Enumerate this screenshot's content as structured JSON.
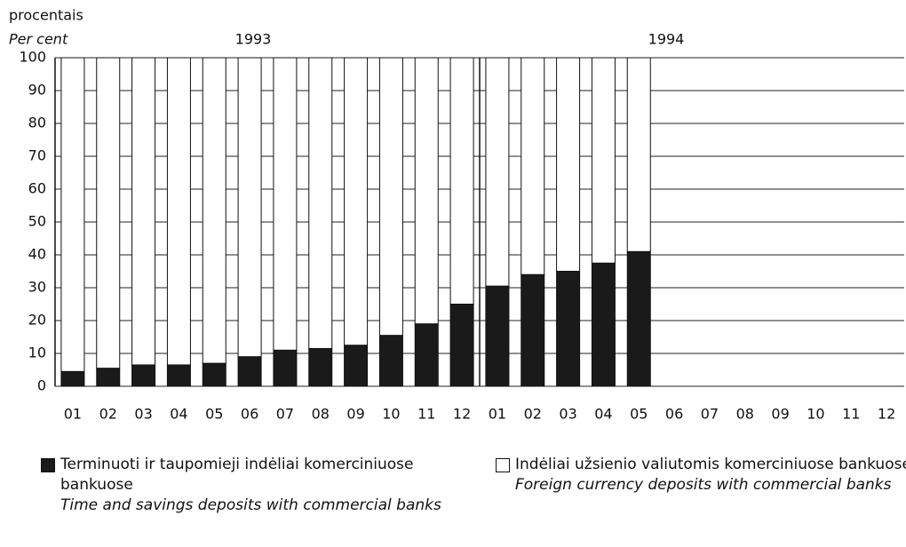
{
  "chart_data": {
    "type": "stacked_bar",
    "y_label": "procentais",
    "y_label_en": "Per cent",
    "annotations": [
      "1993",
      "1994"
    ],
    "categories": [
      "01",
      "02",
      "03",
      "04",
      "05",
      "06",
      "07",
      "08",
      "09",
      "10",
      "11",
      "12",
      "01",
      "02",
      "03",
      "04",
      "05",
      "06",
      "07",
      "08",
      "09",
      "10",
      "11",
      "12"
    ],
    "series": [
      {
        "name": "Terminuoti ir taupomieji indėliai komerciniuose bankuose",
        "name_en": "Time and savings deposits with commercial banks",
        "color": "#1a1a1a",
        "values": [
          4.5,
          5.5,
          6.5,
          6.5,
          7,
          9,
          11,
          11.5,
          12.5,
          15.5,
          19,
          25,
          30.5,
          34,
          35,
          37.5,
          41,
          null,
          null,
          null,
          null,
          null,
          null,
          null
        ]
      },
      {
        "name": "Indėliai užsienio valiutomis komerciniuose bankuose",
        "name_en": "Foreign currency deposits with commercial banks",
        "color": "#ffffff",
        "values": [
          95.5,
          94.5,
          93.5,
          93.5,
          93,
          91,
          89,
          88.5,
          87.5,
          84.5,
          81,
          75,
          69.5,
          66,
          65,
          62.5,
          59,
          null,
          null,
          null,
          null,
          null,
          null,
          null
        ]
      }
    ],
    "ylim": [
      0,
      100
    ],
    "yticks": [
      0,
      10,
      20,
      30,
      40,
      50,
      60,
      70,
      80,
      90,
      100
    ],
    "grid": true
  }
}
